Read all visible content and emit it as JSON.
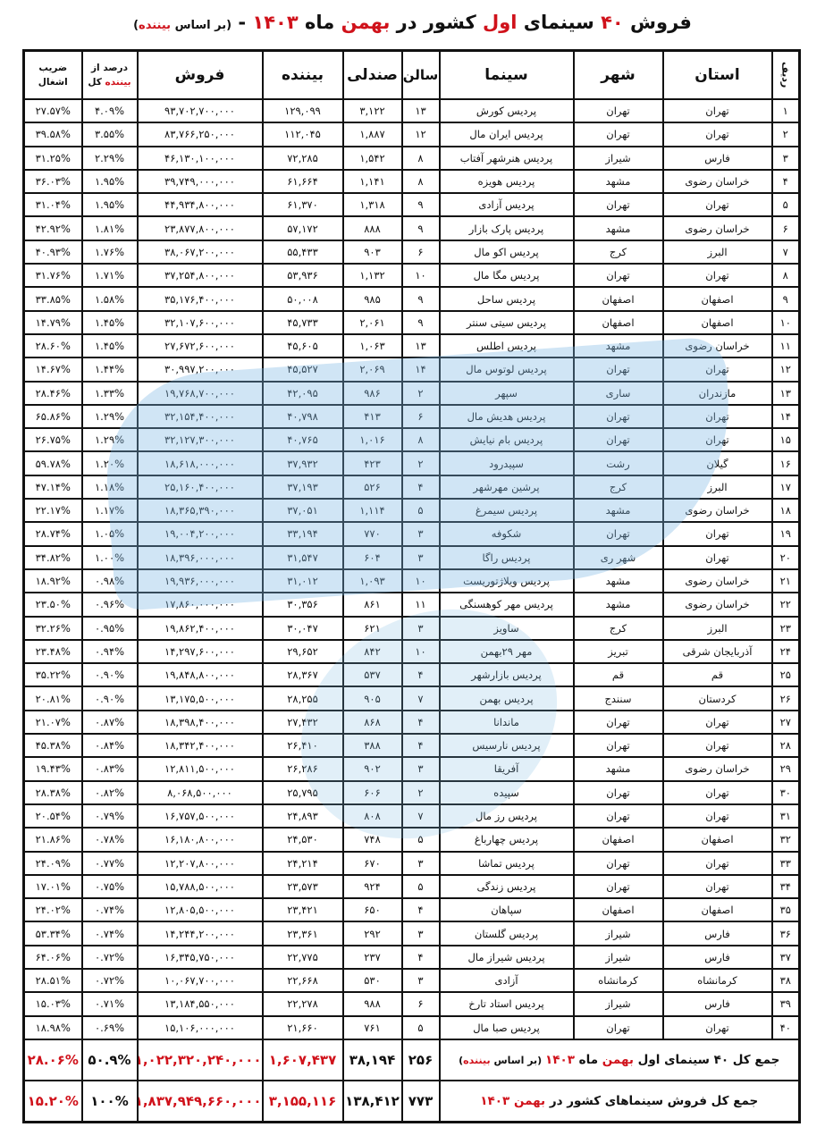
{
  "title": {
    "segments": [
      {
        "text": "فروش ",
        "red": false
      },
      {
        "text": "۴۰",
        "red": true
      },
      {
        "text": " سینمای ",
        "red": false
      },
      {
        "text": "اول",
        "red": true
      },
      {
        "text": " کشور در ",
        "red": false
      },
      {
        "text": "بهمن",
        "red": true
      },
      {
        "text": " ماه ",
        "red": false
      },
      {
        "text": "۱۴۰۳",
        "red": true
      },
      {
        "text": " - ",
        "red": false
      }
    ],
    "sub_prefix": "(بر اساس ",
    "sub_red": "بیننده",
    "sub_suffix": ")"
  },
  "columns": {
    "rank": "ردیف",
    "province": "استان",
    "city": "شهر",
    "cinema": "سینما",
    "halls": "سالن",
    "seats": "صندلی",
    "viewers": "بیننده",
    "sales": "فروش",
    "percent_line1": "درصد از",
    "percent_red": "بیننده",
    "percent_line2": " کل",
    "occupancy_line1": "ضریب",
    "occupancy_line2": "اشغال"
  },
  "colors": {
    "accent": "#d0121b",
    "border": "#111111",
    "watermark": "#78b4e1"
  },
  "rows": [
    [
      "۱",
      "تهران",
      "تهران",
      "پردیس کورش",
      "۱۳",
      "۳,۱۲۲",
      "۱۲۹,۰۹۹",
      "۹۳,۷۰۲,۷۰۰,۰۰۰",
      "۴.۰۹%",
      "۲۷.۵۷%"
    ],
    [
      "۲",
      "تهران",
      "تهران",
      "پردیس ایران مال",
      "۱۲",
      "۱,۸۸۷",
      "۱۱۲,۰۴۵",
      "۸۳,۷۶۶,۲۵۰,۰۰۰",
      "۳.۵۵%",
      "۳۹.۵۸%"
    ],
    [
      "۳",
      "فارس",
      "شیراز",
      "پردیس هنرشهر آفتاب",
      "۸",
      "۱,۵۴۲",
      "۷۲,۲۸۵",
      "۴۶,۱۳۰,۱۰۰,۰۰۰",
      "۲.۲۹%",
      "۳۱.۲۵%"
    ],
    [
      "۴",
      "خراسان رضوی",
      "مشهد",
      "پردیس هویزه",
      "۸",
      "۱,۱۴۱",
      "۶۱,۶۶۴",
      "۳۹,۷۴۹,۰۰۰,۰۰۰",
      "۱.۹۵%",
      "۳۶.۰۳%"
    ],
    [
      "۵",
      "تهران",
      "تهران",
      "پردیس آزادی",
      "۹",
      "۱,۳۱۸",
      "۶۱,۳۷۰",
      "۴۴,۹۳۴,۸۰۰,۰۰۰",
      "۱.۹۵%",
      "۳۱.۰۴%"
    ],
    [
      "۶",
      "خراسان رضوی",
      "مشهد",
      "پردیس پارک بازار",
      "۹",
      "۸۸۸",
      "۵۷,۱۷۲",
      "۲۳,۸۷۷,۸۰۰,۰۰۰",
      "۱.۸۱%",
      "۴۲.۹۲%"
    ],
    [
      "۷",
      "البرز",
      "کرج",
      "پردیس اکو مال",
      "۶",
      "۹۰۳",
      "۵۵,۴۳۳",
      "۳۸,۰۶۷,۲۰۰,۰۰۰",
      "۱.۷۶%",
      "۴۰.۹۳%"
    ],
    [
      "۸",
      "تهران",
      "تهران",
      "پردیس مگا مال",
      "۱۰",
      "۱,۱۳۲",
      "۵۳,۹۳۶",
      "۳۷,۲۵۴,۸۰۰,۰۰۰",
      "۱.۷۱%",
      "۳۱.۷۶%"
    ],
    [
      "۹",
      "اصفهان",
      "اصفهان",
      "پردیس ساحل",
      "۹",
      "۹۸۵",
      "۵۰,۰۰۸",
      "۳۵,۱۷۶,۴۰۰,۰۰۰",
      "۱.۵۸%",
      "۳۳.۸۵%"
    ],
    [
      "۱۰",
      "اصفهان",
      "اصفهان",
      "پردیس سیتی سنتر",
      "۹",
      "۲,۰۶۱",
      "۴۵,۷۳۳",
      "۳۲,۱۰۷,۶۰۰,۰۰۰",
      "۱.۴۵%",
      "۱۴.۷۹%"
    ],
    [
      "۱۱",
      "خراسان رضوی",
      "مشهد",
      "پردیس اطلس",
      "۱۳",
      "۱,۰۶۳",
      "۴۵,۶۰۵",
      "۲۷,۶۷۲,۶۰۰,۰۰۰",
      "۱.۴۵%",
      "۲۸.۶۰%"
    ],
    [
      "۱۲",
      "تهران",
      "تهران",
      "پردیس لوتوس مال",
      "۱۴",
      "۲,۰۶۹",
      "۴۵,۵۲۷",
      "۳۰,۹۹۷,۲۰۰,۰۰۰",
      "۱.۴۴%",
      "۱۴.۶۷%"
    ],
    [
      "۱۳",
      "مازندران",
      "ساری",
      "سپهر",
      "۲",
      "۹۸۶",
      "۴۲,۰۹۵",
      "۱۹,۷۶۸,۷۰۰,۰۰۰",
      "۱.۳۳%",
      "۲۸.۴۶%"
    ],
    [
      "۱۴",
      "تهران",
      "تهران",
      "پردیس هدیش مال",
      "۶",
      "۴۱۳",
      "۴۰,۷۹۸",
      "۳۲,۱۵۴,۴۰۰,۰۰۰",
      "۱.۲۹%",
      "۶۵.۸۶%"
    ],
    [
      "۱۵",
      "تهران",
      "تهران",
      "پردیس بام نیایش",
      "۸",
      "۱,۰۱۶",
      "۴۰,۷۶۵",
      "۳۲,۱۲۷,۳۰۰,۰۰۰",
      "۱.۲۹%",
      "۲۶.۷۵%"
    ],
    [
      "۱۶",
      "گیلان",
      "رشت",
      "سپیدرود",
      "۲",
      "۴۲۳",
      "۳۷,۹۳۲",
      "۱۸,۶۱۸,۰۰۰,۰۰۰",
      "۱.۲۰%",
      "۵۹.۷۸%"
    ],
    [
      "۱۷",
      "البرز",
      "کرج",
      "پرشین مهرشهر",
      "۴",
      "۵۲۶",
      "۳۷,۱۹۳",
      "۲۵,۱۶۰,۴۰۰,۰۰۰",
      "۱.۱۸%",
      "۴۷.۱۴%"
    ],
    [
      "۱۸",
      "خراسان رضوی",
      "مشهد",
      "پردیس سیمرغ",
      "۵",
      "۱,۱۱۴",
      "۳۷,۰۵۱",
      "۱۸,۳۶۵,۳۹۰,۰۰۰",
      "۱.۱۷%",
      "۲۲.۱۷%"
    ],
    [
      "۱۹",
      "تهران",
      "تهران",
      "شکوفه",
      "۳",
      "۷۷۰",
      "۳۳,۱۹۴",
      "۱۹,۰۰۴,۲۰۰,۰۰۰",
      "۱.۰۵%",
      "۲۸.۷۴%"
    ],
    [
      "۲۰",
      "تهران",
      "شهر ری",
      "پردیس راگا",
      "۳",
      "۶۰۴",
      "۳۱,۵۴۷",
      "۱۸,۳۹۶,۰۰۰,۰۰۰",
      "۱.۰۰%",
      "۳۴.۸۲%"
    ],
    [
      "۲۱",
      "خراسان رضوی",
      "مشهد",
      "پردیس ویلاژتوریست",
      "۱۰",
      "۱,۰۹۳",
      "۳۱,۰۱۲",
      "۱۹,۹۳۶,۰۰۰,۰۰۰",
      "۰.۹۸%",
      "۱۸.۹۲%"
    ],
    [
      "۲۲",
      "خراسان رضوی",
      "مشهد",
      "پردیس مهر کوهسنگی",
      "۱۱",
      "۸۶۱",
      "۳۰,۳۵۶",
      "۱۷,۸۶۰,۰۰۰,۰۰۰",
      "۰.۹۶%",
      "۲۳.۵۰%"
    ],
    [
      "۲۳",
      "البرز",
      "کرج",
      "ساویز",
      "۳",
      "۶۲۱",
      "۳۰,۰۴۷",
      "۱۹,۸۶۲,۴۰۰,۰۰۰",
      "۰.۹۵%",
      "۳۲.۲۶%"
    ],
    [
      "۲۴",
      "آذربایجان شرقی",
      "تبریز",
      "مهر ۲۹بهمن",
      "۱۰",
      "۸۴۲",
      "۲۹,۶۵۲",
      "۱۴,۲۹۷,۶۰۰,۰۰۰",
      "۰.۹۴%",
      "۲۳.۴۸%"
    ],
    [
      "۲۵",
      "قم",
      "قم",
      "پردیس بازارشهر",
      "۴",
      "۵۳۷",
      "۲۸,۳۶۷",
      "۱۹,۸۴۸,۸۰۰,۰۰۰",
      "۰.۹۰%",
      "۳۵.۲۲%"
    ],
    [
      "۲۶",
      "کردستان",
      "سنندج",
      "پردیس بهمن",
      "۷",
      "۹۰۵",
      "۲۸,۲۵۵",
      "۱۳,۱۷۵,۵۰۰,۰۰۰",
      "۰.۹۰%",
      "۲۰.۸۱%"
    ],
    [
      "۲۷",
      "تهران",
      "تهران",
      "ماندانا",
      "۴",
      "۸۶۸",
      "۲۷,۴۳۲",
      "۱۸,۳۹۸,۴۰۰,۰۰۰",
      "۰.۸۷%",
      "۲۱.۰۷%"
    ],
    [
      "۲۸",
      "تهران",
      "تهران",
      "پردیس نارسیس",
      "۴",
      "۳۸۸",
      "۲۶,۴۱۰",
      "۱۸,۳۴۲,۴۰۰,۰۰۰",
      "۰.۸۴%",
      "۴۵.۳۸%"
    ],
    [
      "۲۹",
      "خراسان رضوی",
      "مشهد",
      "آفریقا",
      "۳",
      "۹۰۲",
      "۲۶,۲۸۶",
      "۱۲,۸۱۱,۵۰۰,۰۰۰",
      "۰.۸۳%",
      "۱۹.۴۳%"
    ],
    [
      "۳۰",
      "تهران",
      "تهران",
      "سپیده",
      "۲",
      "۶۰۶",
      "۲۵,۷۹۵",
      "۸,۰۶۸,۵۰۰,۰۰۰",
      "۰.۸۲%",
      "۲۸.۳۸%"
    ],
    [
      "۳۱",
      "تهران",
      "تهران",
      "پردیس رز مال",
      "۷",
      "۸۰۸",
      "۲۴,۸۹۳",
      "۱۶,۷۵۷,۵۰۰,۰۰۰",
      "۰.۷۹%",
      "۲۰.۵۴%"
    ],
    [
      "۳۲",
      "اصفهان",
      "اصفهان",
      "پردیس چهارباغ",
      "۵",
      "۷۴۸",
      "۲۴,۵۳۰",
      "۱۶,۱۸۰,۸۰۰,۰۰۰",
      "۰.۷۸%",
      "۲۱.۸۶%"
    ],
    [
      "۳۳",
      "تهران",
      "تهران",
      "پردیس تماشا",
      "۳",
      "۶۷۰",
      "۲۴,۲۱۴",
      "۱۲,۲۰۷,۸۰۰,۰۰۰",
      "۰.۷۷%",
      "۲۴.۰۹%"
    ],
    [
      "۳۴",
      "تهران",
      "تهران",
      "پردیس زندگی",
      "۵",
      "۹۲۴",
      "۲۳,۵۷۳",
      "۱۵,۷۸۸,۵۰۰,۰۰۰",
      "۰.۷۵%",
      "۱۷.۰۱%"
    ],
    [
      "۳۵",
      "اصفهان",
      "اصفهان",
      "سپاهان",
      "۴",
      "۶۵۰",
      "۲۳,۴۲۱",
      "۱۲,۸۰۵,۵۰۰,۰۰۰",
      "۰.۷۴%",
      "۲۴.۰۲%"
    ],
    [
      "۳۶",
      "فارس",
      "شیراز",
      "پردیس گلستان",
      "۳",
      "۲۹۲",
      "۲۳,۳۶۱",
      "۱۴,۲۴۴,۲۰۰,۰۰۰",
      "۰.۷۴%",
      "۵۳.۳۴%"
    ],
    [
      "۳۷",
      "فارس",
      "شیراز",
      "پردیس شیراز مال",
      "۴",
      "۲۳۷",
      "۲۲,۷۷۵",
      "۱۶,۳۴۵,۷۵۰,۰۰۰",
      "۰.۷۲%",
      "۶۴.۰۶%"
    ],
    [
      "۳۸",
      "کرمانشاه",
      "کرمانشاه",
      "آزادی",
      "۳",
      "۵۳۰",
      "۲۲,۶۶۸",
      "۱۰,۰۶۷,۷۰۰,۰۰۰",
      "۰.۷۲%",
      "۲۸.۵۱%"
    ],
    [
      "۳۹",
      "فارس",
      "شیراز",
      "پردیس استاد تارخ",
      "۶",
      "۹۸۸",
      "۲۲,۲۷۸",
      "۱۳,۱۸۴,۵۵۰,۰۰۰",
      "۰.۷۱%",
      "۱۵.۰۳%"
    ],
    [
      "۴۰",
      "تهران",
      "تهران",
      "پردیس صبا مال",
      "۵",
      "۷۶۱",
      "۲۱,۶۶۰",
      "۱۵,۱۰۶,۰۰۰,۰۰۰",
      "۰.۶۹%",
      "۱۸.۹۸%"
    ]
  ],
  "totals": [
    {
      "label_segments": [
        {
          "text": "جمع کل ",
          "red": false
        },
        {
          "text": "۴۰",
          "red": false
        },
        {
          "text": " سینمای اول ",
          "red": false
        },
        {
          "text": "بهمن",
          "red": true
        },
        {
          "text": " ماه ",
          "red": false
        },
        {
          "text": "۱۴۰۳",
          "red": true
        },
        {
          "text": " (بر اساس ",
          "red": false,
          "small": true
        },
        {
          "text": "بیننده",
          "red": true,
          "small": true
        },
        {
          "text": ")",
          "red": false,
          "small": true
        }
      ],
      "halls": "۲۵۶",
      "seats": "۳۸,۱۹۴",
      "viewers": "۱,۶۰۷,۴۳۷",
      "sales": "۱,۰۲۲,۳۲۰,۲۴۰,۰۰۰",
      "percent": "۵۰.۹%",
      "occupancy": "۲۸.۰۶%"
    },
    {
      "label_segments": [
        {
          "text": "جمع کل فروش سینماهای کشور در ",
          "red": false
        },
        {
          "text": "بهمن",
          "red": true
        },
        {
          "text": " ",
          "red": false
        },
        {
          "text": "۱۴۰۳",
          "red": true
        }
      ],
      "halls": "۷۷۳",
      "seats": "۱۳۸,۴۱۲",
      "viewers": "۳,۱۵۵,۱۱۶",
      "sales": "۱,۸۳۷,۹۴۹,۶۶۰,۰۰۰",
      "percent": "۱۰۰%",
      "occupancy": "۱۵.۲۰%"
    }
  ]
}
